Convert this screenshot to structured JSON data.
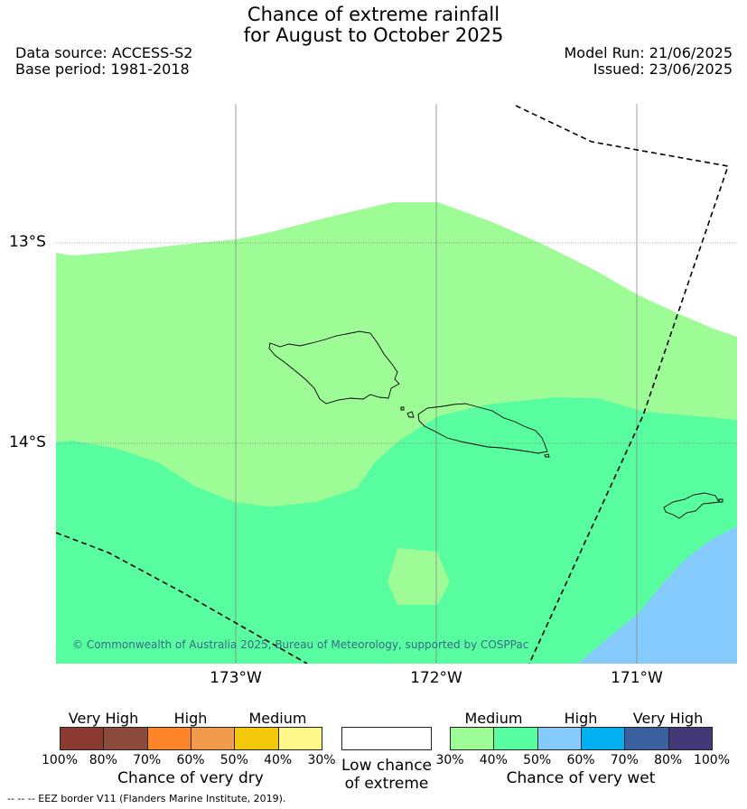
{
  "title_line1": "Chance of extreme rainfall",
  "title_line2": "for August to October 2025",
  "data_source": "Data source: ACCESS-S2",
  "base_period": "Base period: 1981-2018",
  "model_run": "Model Run: 21/06/2025",
  "issued": "Issued: 23/06/2025",
  "lat_labels": [
    "13°S",
    "14°S"
  ],
  "lon_labels": [
    "173°W",
    "172°W",
    "171°W"
  ],
  "copyright": "© Commonwealth of Australia 2025, Bureau of Meteorology, supported by COSPPac",
  "legend": {
    "dry": {
      "title": "Chance of very dry",
      "categories": [
        "Very High",
        "High",
        "Medium"
      ],
      "percents": [
        "100%",
        "80%",
        "70%",
        "60%",
        "50%",
        "40%",
        "30%"
      ],
      "colors": [
        "#8b3a32",
        "#8a4a3c",
        "#ff8428",
        "#f09c4c",
        "#f2c80a",
        "#fff78a"
      ]
    },
    "low": {
      "title_line1": "Low chance",
      "title_line2": "of extreme",
      "color": "#ffffff"
    },
    "wet": {
      "title": "Chance of very wet",
      "categories": [
        "Medium",
        "High",
        "Very High"
      ],
      "percents": [
        "30%",
        "40%",
        "50%",
        "60%",
        "70%",
        "80%",
        "100%"
      ],
      "colors": [
        "#9efc97",
        "#57fd9f",
        "#86cbfd",
        "#00b0f0",
        "#3a60a0",
        "#433878"
      ]
    }
  },
  "map_colors": {
    "medium_30_40": "#9efc97",
    "medium_40_50": "#57fd9f",
    "high_50_60": "#86cbfd"
  },
  "footnote": "--  --  -- EEZ border V11 (Flanders Marine Institute, 2019)."
}
